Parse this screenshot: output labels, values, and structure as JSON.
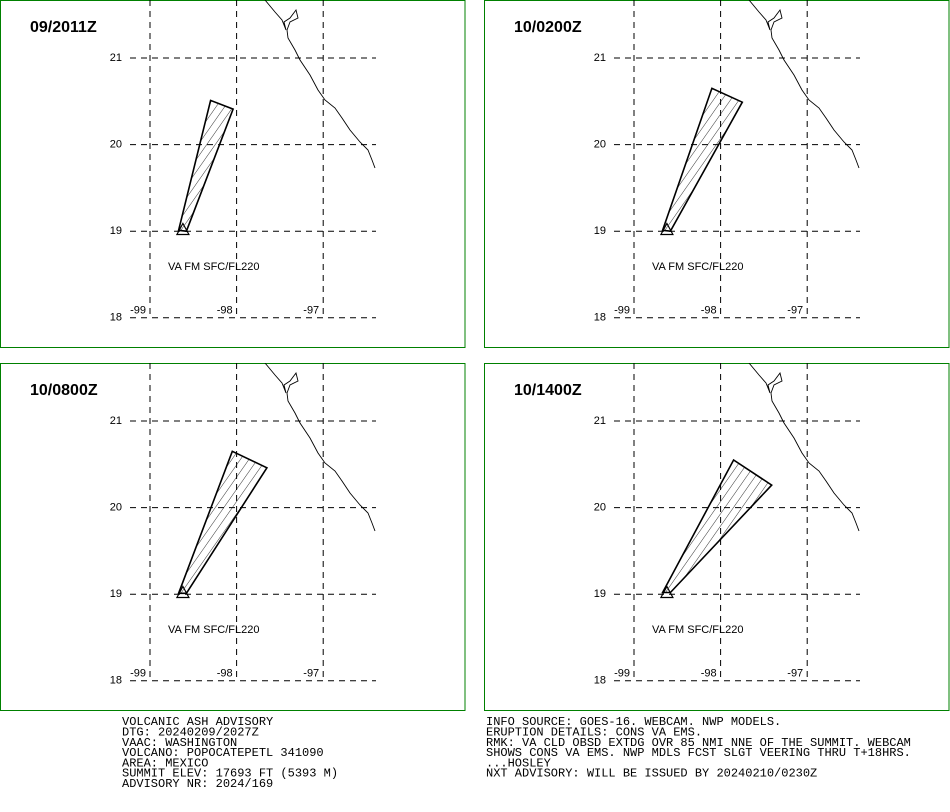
{
  "panels": [
    {
      "time": "09/2011Z",
      "label": "VA FM SFC/FL220",
      "volcano": [
        -98.62,
        19.02
      ],
      "polygon": [
        [
          -98.67,
          19.01
        ],
        [
          -98.3,
          20.51
        ],
        [
          -98.04,
          20.41
        ],
        [
          -98.58,
          19.0
        ]
      ]
    },
    {
      "time": "10/0200Z",
      "label": "VA FM SFC/FL220",
      "volcano": [
        -98.62,
        19.02
      ],
      "polygon": [
        [
          -98.67,
          19.01
        ],
        [
          -98.1,
          20.65
        ],
        [
          -97.75,
          20.49
        ],
        [
          -98.58,
          19.0
        ]
      ]
    },
    {
      "time": "10/0800Z",
      "label": "VA FM SFC/FL220",
      "volcano": [
        -98.62,
        19.02
      ],
      "polygon": [
        [
          -98.67,
          19.01
        ],
        [
          -98.05,
          20.65
        ],
        [
          -97.65,
          20.46
        ],
        [
          -98.58,
          19.01
        ]
      ]
    },
    {
      "time": "10/1400Z",
      "label": "VA FM SFC/FL220",
      "volcano": [
        -98.62,
        19.02
      ],
      "polygon": [
        [
          -98.67,
          19.02
        ],
        [
          -97.85,
          20.55
        ],
        [
          -97.41,
          20.26
        ],
        [
          -98.58,
          19.02
        ]
      ]
    }
  ],
  "lat_ticks": [
    21,
    20,
    19,
    18
  ],
  "lon_ticks": [
    -99,
    -98,
    -97
  ],
  "advisory_left": [
    "VOLCANIC ASH ADVISORY",
    "DTG: 20240209/2027Z",
    "VAAC: WASHINGTON",
    "VOLCANO: POPOCATEPETL 341090",
    "AREA: MEXICO",
    "SUMMIT ELEV: 17693 FT (5393 M)",
    "ADVISORY NR: 2024/169"
  ],
  "advisory_right": [
    "INFO SOURCE: GOES-16. WEBCAM. NWP MODELS.",
    "ERUPTION DETAILS: CONS VA EMS.",
    "RMK: VA CLD OBSD EXTDG OVR 85 NMI NNE OF THE SUMMIT. WEBCAM",
    "SHOWS CONS VA EMS. NWP MDLS FCST SLGT VEERING THRU T+18HRS.",
    "...HOSLEY",
    "NXT ADVISORY: WILL BE ISSUED BY 20240210/0230Z"
  ]
}
